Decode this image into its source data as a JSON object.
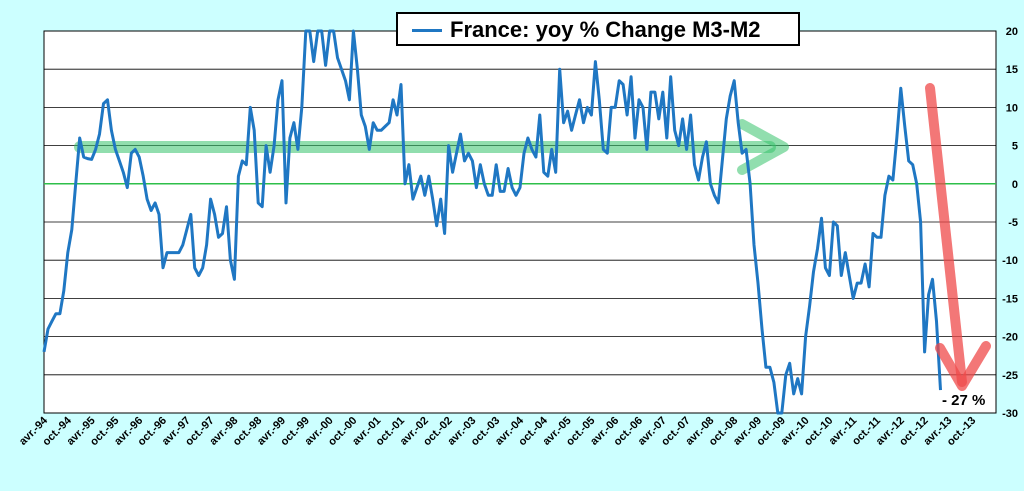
{
  "chart_data": {
    "type": "line",
    "title": "France: yoy % Change M3-M2",
    "ylim": [
      -30,
      20
    ],
    "yticks": [
      -30,
      -25,
      -20,
      -15,
      -10,
      -5,
      0,
      5,
      10,
      15,
      20
    ],
    "x_tick_labels": [
      "avr.-94",
      "oct.-94",
      "avr.-95",
      "oct.-95",
      "avr.-96",
      "oct.-96",
      "avr.-97",
      "oct.-97",
      "avr.-98",
      "oct.-98",
      "avr.-99",
      "oct.-99",
      "avr.-00",
      "oct.-00",
      "avr.-01",
      "oct.-01",
      "avr.-02",
      "oct.-02",
      "avr.-03",
      "oct.-03",
      "avr.-04",
      "oct.-04",
      "avr.-05",
      "oct.-05",
      "avr.-06",
      "oct.-06",
      "avr.-07",
      "oct.-07",
      "avr.-08",
      "oct.-08",
      "avr.-09",
      "oct.-09",
      "avr.-10",
      "oct.-10",
      "avr.-11",
      "oct.-11",
      "avr.-12",
      "oct.-12",
      "avr.-13",
      "oct.-13"
    ],
    "series": [
      {
        "name": "France: yoy % Change M3-M2",
        "color": "#1f77c3",
        "start": "1994-04",
        "frequency": "monthly",
        "values": [
          -22,
          -19,
          -18,
          -17,
          -17,
          -14,
          -9,
          -6,
          0,
          6,
          3.5,
          3.3,
          3.2,
          4.5,
          6.5,
          10.5,
          11,
          7,
          4.5,
          3,
          1.5,
          -0.5,
          4,
          4.5,
          3.5,
          1,
          -2,
          -3.5,
          -2.5,
          -4,
          -11,
          -9,
          -9,
          -9,
          -9,
          -8,
          -6,
          -4,
          -11,
          -12,
          -11,
          -8,
          -2,
          -4,
          -7,
          -6.5,
          -3,
          -10,
          -12.5,
          1,
          3,
          2.5,
          10,
          7,
          -2.5,
          -3,
          5,
          1.5,
          5,
          11,
          13.5,
          -2.5,
          6,
          8,
          4.5,
          10,
          20,
          20,
          16,
          20,
          20.5,
          15.5,
          21,
          20,
          16.5,
          15,
          13.5,
          11,
          20,
          15,
          9,
          7.5,
          4.5,
          8,
          7,
          7,
          7.5,
          8,
          11,
          9,
          13,
          0,
          2.5,
          -2,
          -0.5,
          1,
          -1.5,
          1,
          -2,
          -5.5,
          -2,
          -6.5,
          5,
          1.5,
          4,
          6.5,
          3,
          4,
          3,
          -0.5,
          2.5,
          0,
          -1.5,
          -1.5,
          2.5,
          -1,
          -1,
          2,
          -0.5,
          -1.5,
          -0.5,
          4,
          6,
          4.5,
          3.5,
          9,
          1.5,
          1,
          4.5,
          1.5,
          15,
          8,
          9.5,
          7,
          9,
          11,
          8,
          10,
          9,
          16,
          11,
          4.5,
          4,
          10,
          10,
          13.5,
          13,
          9,
          14,
          6,
          11,
          10,
          4.5,
          12,
          12,
          8.5,
          12,
          6,
          14,
          7,
          5,
          8.5,
          4.5,
          9,
          2.5,
          0.5,
          3.5,
          5.5,
          0,
          -1.5,
          -2.5,
          3,
          8.5,
          11.5,
          13.5,
          8,
          4,
          4.5,
          0,
          -8,
          -13,
          -19,
          -24,
          -24,
          -26,
          -30,
          -30,
          -25,
          -23.5,
          -27.5,
          -25.5,
          -27.5,
          -20,
          -16,
          -11.5,
          -8.5,
          -4.5,
          -11,
          -12,
          -5,
          -5.5,
          -12,
          -9,
          -12,
          -15,
          -13,
          -13,
          -10.5,
          -13.5,
          -6.5,
          -7,
          -7,
          -1.5,
          1,
          0.5,
          6,
          12.5,
          7.5,
          3,
          2.5,
          0,
          -5,
          -22,
          -14.5,
          -12.5,
          -18,
          -27
        ]
      }
    ],
    "annotations": [
      {
        "text": "- 27 %"
      }
    ],
    "horizontal_lines": [
      0
    ],
    "grid": true,
    "legend": "top-center",
    "y_axis_side": "right"
  }
}
